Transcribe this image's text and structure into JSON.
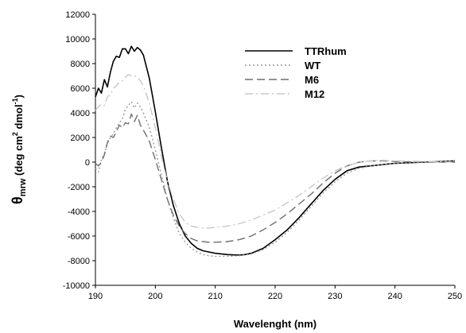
{
  "chart_data": {
    "type": "line",
    "title": "",
    "xlabel": "Wavelenght (nm)",
    "ylabel": {
      "main": "θ",
      "sub": "mrw",
      "units_open": " (deg cm",
      "units_sup1": "2",
      "units_mid": " dmol",
      "units_sup2": "-1",
      "units_close": ")"
    },
    "xlim": [
      190,
      250
    ],
    "ylim": [
      -10000,
      12000
    ],
    "x_ticks": [
      "190",
      "200",
      "210",
      "220",
      "230",
      "240",
      "250"
    ],
    "y_ticks": [
      "12000",
      "10000",
      "8000",
      "6000",
      "4000",
      "2000",
      "0",
      "-2000",
      "-4000",
      "-6000",
      "-8000",
      "-10000"
    ],
    "grid": false,
    "legend_position": "top-right",
    "series": [
      {
        "name": "TTRhum",
        "style": "solid",
        "color": "#000000",
        "x": [
          190,
          190.5,
          191,
          191.5,
          192,
          192.5,
          193,
          193.5,
          194,
          194.5,
          195,
          195.5,
          196,
          196.5,
          197,
          197.5,
          198,
          199,
          200,
          201,
          202,
          203,
          204,
          205,
          206,
          207,
          208,
          209,
          210,
          212,
          214,
          215,
          216,
          218,
          220,
          222,
          224,
          226,
          228,
          230,
          232,
          234,
          236,
          238,
          240,
          245,
          250
        ],
        "y": [
          5300,
          6000,
          5600,
          6700,
          6100,
          7300,
          8200,
          8600,
          8500,
          9200,
          9200,
          8800,
          9400,
          9000,
          9300,
          9100,
          8700,
          6800,
          4100,
          1200,
          -1500,
          -3500,
          -5000,
          -6000,
          -6600,
          -7000,
          -7200,
          -7300,
          -7400,
          -7500,
          -7550,
          -7500,
          -7400,
          -7000,
          -6300,
          -5500,
          -4500,
          -3400,
          -2300,
          -1400,
          -700,
          -400,
          -300,
          -200,
          -100,
          0,
          100
        ]
      },
      {
        "name": "WT",
        "style": "dotted",
        "color": "#999999",
        "x": [
          190,
          190.5,
          191,
          191.5,
          192,
          192.5,
          193,
          193.5,
          194,
          194.5,
          195,
          195.5,
          196,
          196.5,
          197,
          197.5,
          198,
          199,
          200,
          201,
          202,
          203,
          204,
          205,
          206,
          207,
          208,
          209,
          210,
          212,
          214,
          216,
          218,
          220,
          222,
          224,
          226,
          228,
          230,
          232,
          234,
          236,
          238,
          240,
          245,
          250
        ],
        "y": [
          -500,
          -800,
          200,
          700,
          1500,
          2000,
          2300,
          2800,
          3200,
          3500,
          4300,
          4600,
          4900,
          4400,
          4800,
          4500,
          4000,
          2800,
          1000,
          -1000,
          -3000,
          -4500,
          -5800,
          -6500,
          -7000,
          -7300,
          -7500,
          -7600,
          -7650,
          -7650,
          -7600,
          -7450,
          -7100,
          -6500,
          -5700,
          -4700,
          -3600,
          -2500,
          -1600,
          -900,
          -500,
          -300,
          -200,
          -100,
          0,
          100
        ]
      },
      {
        "name": "M6",
        "style": "dashed",
        "color": "#6e6e6e",
        "x": [
          190,
          190.5,
          191,
          191.5,
          192,
          192.5,
          193,
          193.5,
          194,
          194.5,
          195,
          195.5,
          196,
          196.5,
          197,
          197.5,
          198,
          199,
          200,
          201,
          202,
          203,
          204,
          205,
          206,
          207,
          208,
          209,
          210,
          212,
          214,
          216,
          218,
          220,
          222,
          224,
          226,
          228,
          230,
          232,
          234,
          236,
          238,
          240,
          245,
          250
        ],
        "y": [
          -100,
          -300,
          0,
          600,
          1600,
          2100,
          2000,
          2500,
          3000,
          2800,
          3200,
          3100,
          3900,
          3300,
          3800,
          3000,
          2600,
          1700,
          200,
          -1400,
          -3000,
          -4300,
          -5200,
          -5800,
          -6200,
          -6400,
          -6450,
          -6500,
          -6500,
          -6450,
          -6300,
          -6000,
          -5500,
          -4900,
          -4200,
          -3400,
          -2600,
          -1700,
          -900,
          -300,
          0,
          100,
          100,
          50,
          0,
          0
        ]
      },
      {
        "name": "M12",
        "style": "dash-dot",
        "color": "#c8c8c8",
        "x": [
          190,
          190.5,
          191,
          191.5,
          192,
          192.5,
          193,
          193.5,
          194,
          194.5,
          195,
          195.5,
          196,
          196.5,
          197,
          197.5,
          198,
          199,
          200,
          201,
          202,
          203,
          204,
          205,
          206,
          207,
          208,
          209,
          210,
          212,
          214,
          216,
          218,
          220,
          222,
          224,
          226,
          228,
          230,
          232,
          234,
          236,
          238,
          240,
          245,
          250
        ],
        "y": [
          4200,
          4500,
          4700,
          4600,
          5300,
          5500,
          6000,
          6200,
          6500,
          6600,
          6900,
          7100,
          7000,
          7000,
          6900,
          6600,
          6200,
          4800,
          2800,
          500,
          -1500,
          -3000,
          -4200,
          -4900,
          -5200,
          -5300,
          -5350,
          -5350,
          -5300,
          -5200,
          -5000,
          -4700,
          -4300,
          -3900,
          -3300,
          -2700,
          -2000,
          -1300,
          -700,
          -300,
          0,
          100,
          150,
          100,
          50,
          0
        ]
      }
    ]
  }
}
